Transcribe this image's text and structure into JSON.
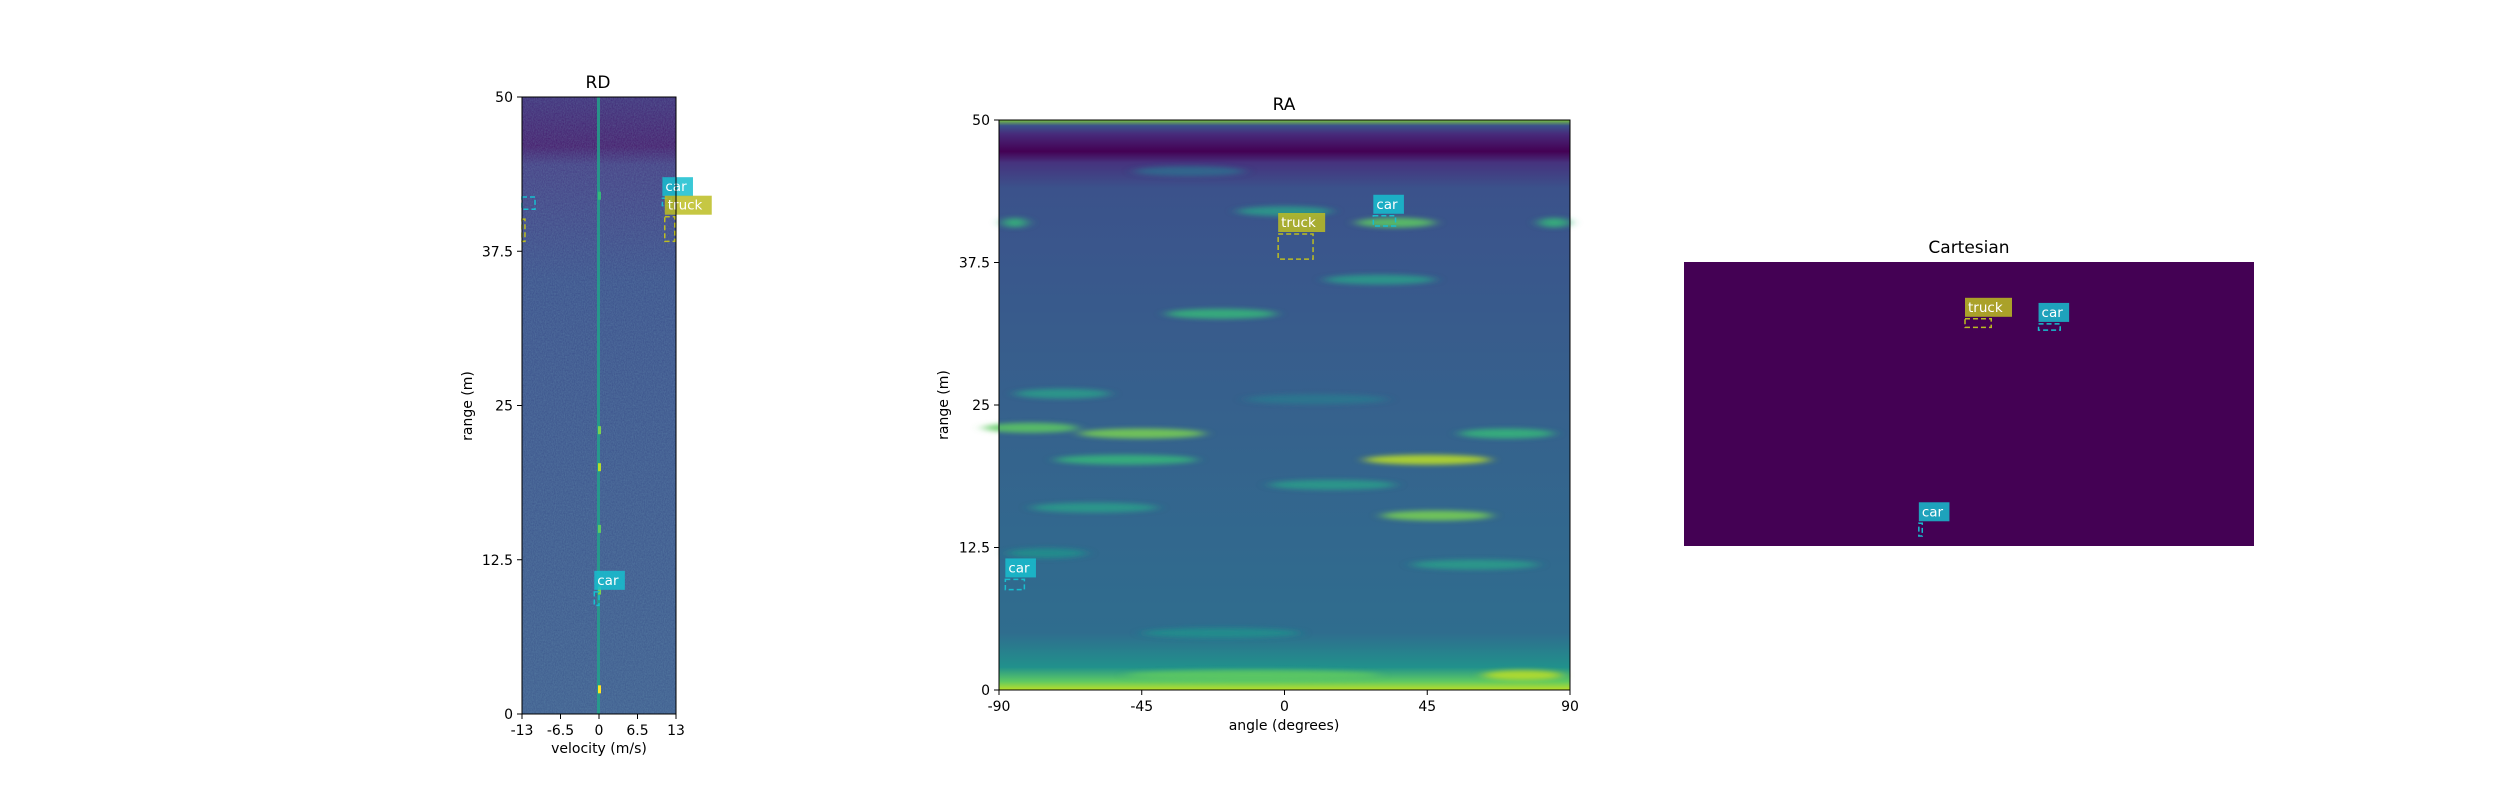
{
  "figure": {
    "background": "#ffffff"
  },
  "chart_data": [
    {
      "type": "heatmap",
      "title": "RD",
      "xlabel": "velocity (m/s)",
      "ylabel": "range (m)",
      "xlim": [
        -13,
        13
      ],
      "ylim": [
        0,
        50
      ],
      "xticks": [
        "-13",
        "-6.5",
        "0",
        "6.5",
        "13"
      ],
      "yticks": [
        "0",
        "12.5",
        "25",
        "37.5",
        "50"
      ],
      "colormap": "viridis",
      "detections": [
        {
          "label": "car",
          "color": "#17becf",
          "show_label": true,
          "x0": -0.8,
          "x1": 0.0,
          "y0": 8.8,
          "y1": 9.9
        },
        {
          "label": "car",
          "color": "#17becf",
          "show_label": true,
          "x0": 10.7,
          "x1": 12.2,
          "y0": 41.2,
          "y1": 41.8
        },
        {
          "label": "truck",
          "color": "#bcbd22",
          "show_label": true,
          "x0": 11.1,
          "x1": 12.8,
          "y0": 38.3,
          "y1": 40.3
        },
        {
          "label": "car",
          "color": "#17becf",
          "show_label": false,
          "x0": -13.0,
          "x1": -10.8,
          "y0": 40.9,
          "y1": 41.9
        },
        {
          "label": "truck",
          "color": "#bcbd22",
          "show_label": false,
          "x0": -13.0,
          "x1": -12.5,
          "y0": 38.3,
          "y1": 40.1
        }
      ]
    },
    {
      "type": "heatmap",
      "title": "RA",
      "xlabel": "angle (degrees)",
      "ylabel": "range (m)",
      "xlim": [
        -90,
        90
      ],
      "ylim": [
        0,
        50
      ],
      "xticks": [
        "-90",
        "-45",
        "0",
        "45",
        "90"
      ],
      "yticks": [
        "0",
        "12.5",
        "25",
        "37.5",
        "50"
      ],
      "colormap": "viridis",
      "detections": [
        {
          "label": "car",
          "color": "#17becf",
          "show_label": true,
          "x0": -88.0,
          "x1": -82.0,
          "y0": 8.8,
          "y1": 9.7
        },
        {
          "label": "truck",
          "color": "#bcbd22",
          "show_label": true,
          "x0": -2.0,
          "x1": 9.0,
          "y0": 37.8,
          "y1": 40.0
        },
        {
          "label": "car",
          "color": "#17becf",
          "show_label": true,
          "x0": 28.0,
          "x1": 35.0,
          "y0": 40.7,
          "y1": 41.6
        }
      ]
    },
    {
      "type": "heatmap",
      "title": "Cartesian",
      "background": "#440154",
      "detections": [
        {
          "label": "truck",
          "color": "#bcbd22",
          "show_label": true,
          "fx0": 0.493,
          "fx1": 0.539,
          "fy0": 0.2,
          "fy1": 0.23
        },
        {
          "label": "car",
          "color": "#17becf",
          "show_label": true,
          "fx0": 0.622,
          "fx1": 0.66,
          "fy0": 0.218,
          "fy1": 0.24
        },
        {
          "label": "car",
          "color": "#17becf",
          "show_label": true,
          "fx0": 0.412,
          "fx1": 0.418,
          "fy0": 0.92,
          "fy1": 0.965
        }
      ]
    }
  ]
}
